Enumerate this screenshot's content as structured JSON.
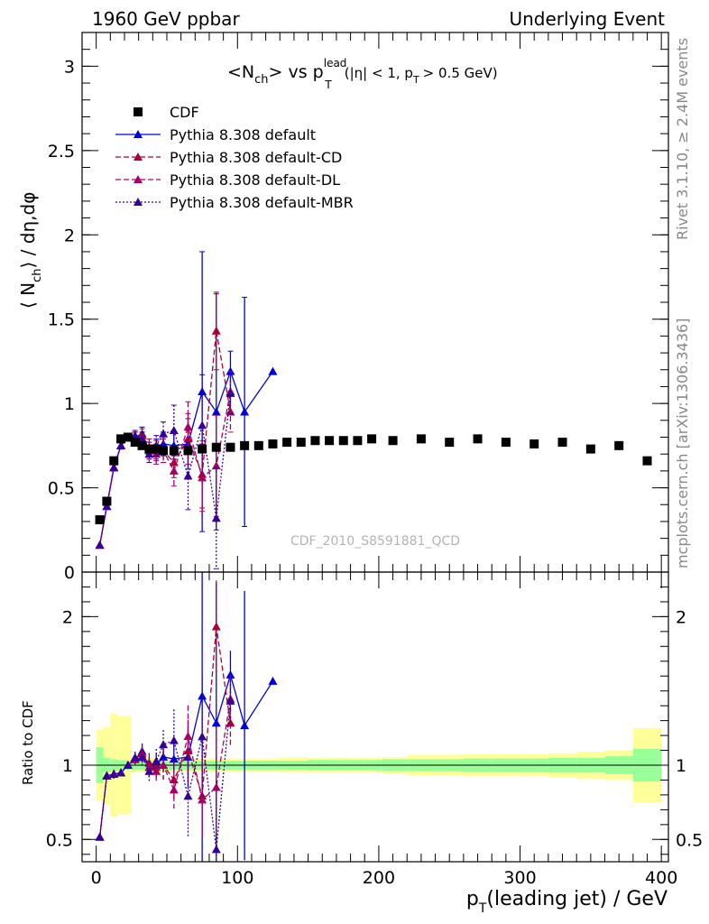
{
  "header": {
    "left": "1960 GeV ppbar",
    "right": "Underlying Event"
  },
  "side_labels": {
    "rivet": "Rivet 3.1.10, ≥ 2.4M events",
    "mcplots": "mcplots.cern.ch [arXiv:1306.3436]"
  },
  "watermark": "CDF_2010_S8591881_QCD",
  "chart_data": {
    "type": "scatter",
    "title_parts": {
      "main": "<N",
      "ch_sub": "ch",
      "vs": "> vs p",
      "lead_sup": "lead",
      "t_sub": "T",
      "cut_open": "(|η| < 1, p",
      "cut_t": "T",
      "cut_close": "> 0.5 GeV)"
    },
    "ylabel_parts": {
      "open": "⟨ N",
      "sub": "ch",
      "close": "⟩ / dη,dφ"
    },
    "xlabel_parts": {
      "p": "p",
      "sub": "T",
      "rest": "(leading jet) / GeV"
    },
    "ratio_ylabel": "Ratio to CDF",
    "xlim": [
      -10,
      405
    ],
    "ylim": [
      0,
      3.2
    ],
    "ratio_ylim": [
      0.35,
      2.3
    ],
    "x_ticks": [
      "0",
      "100",
      "200",
      "300",
      "400"
    ],
    "y_ticks": [
      "0",
      "0.5",
      "1",
      "1.5",
      "2",
      "2.5",
      "3"
    ],
    "ratio_y_ticks": [
      "0.5",
      "1",
      "2"
    ],
    "legend": [
      {
        "label": "CDF",
        "color": "#000000",
        "style": "marker"
      },
      {
        "label": "Pythia 8.308 default",
        "color": "#0000dd",
        "style": "solid"
      },
      {
        "label": "Pythia 8.308 default-CD",
        "color": "#aa0033",
        "style": "dashed"
      },
      {
        "label": "Pythia 8.308 default-DL",
        "color": "#aa0066",
        "style": "dashed"
      },
      {
        "label": "Pythia 8.308 default-MBR",
        "color": "#330099",
        "style": "dotted"
      }
    ],
    "data": {
      "x": [
        2.5,
        7.5,
        12.5,
        17.5,
        22.5,
        27.5,
        32.5,
        37.5,
        42.5,
        47.5,
        55,
        65,
        75,
        85,
        95,
        105,
        115,
        125,
        135,
        145,
        155,
        165,
        175,
        185,
        195,
        210,
        230,
        250,
        270,
        290,
        310,
        330,
        350,
        370,
        390
      ],
      "y": [
        0.31,
        0.42,
        0.66,
        0.79,
        0.8,
        0.77,
        0.75,
        0.73,
        0.73,
        0.72,
        0.72,
        0.72,
        0.73,
        0.74,
        0.74,
        0.75,
        0.75,
        0.76,
        0.77,
        0.77,
        0.78,
        0.78,
        0.78,
        0.78,
        0.79,
        0.78,
        0.79,
        0.77,
        0.79,
        0.77,
        0.76,
        0.77,
        0.73,
        0.75,
        0.66
      ],
      "stat_band": [
        0.12,
        0.05,
        0.04,
        0.035,
        0.03,
        0.03,
        0.03,
        0.03,
        0.03,
        0.03,
        0.03,
        0.03,
        0.03,
        0.03,
        0.03,
        0.03,
        0.03,
        0.03,
        0.03,
        0.03,
        0.035,
        0.035,
        0.035,
        0.035,
        0.035,
        0.04,
        0.04,
        0.04,
        0.045,
        0.045,
        0.045,
        0.05,
        0.05,
        0.06,
        0.11
      ],
      "total_band": [
        0.24,
        0.26,
        0.35,
        0.33,
        0.33,
        0.05,
        0.05,
        0.05,
        0.05,
        0.05,
        0.045,
        0.045,
        0.045,
        0.045,
        0.045,
        0.045,
        0.045,
        0.045,
        0.05,
        0.05,
        0.05,
        0.05,
        0.05,
        0.05,
        0.05,
        0.055,
        0.07,
        0.07,
        0.075,
        0.075,
        0.075,
        0.08,
        0.09,
        0.1,
        0.25
      ]
    },
    "series": [
      {
        "name": "Pythia 8.308 default",
        "color": "#0000dd",
        "dash": "",
        "x": [
          2.5,
          7.5,
          12.5,
          17.5,
          22.5,
          27.5,
          32.5,
          37.5,
          42.5,
          47.5,
          55,
          65,
          75,
          85,
          95,
          105,
          125
        ],
        "y": [
          0.16,
          0.39,
          0.62,
          0.75,
          0.8,
          0.8,
          0.82,
          0.72,
          0.73,
          0.76,
          0.75,
          0.76,
          1.07,
          0.95,
          1.19,
          0.95,
          1.19
        ],
        "err": [
          0,
          0,
          0.02,
          0.02,
          0.02,
          0.03,
          0.04,
          0.05,
          0.06,
          0.07,
          0.08,
          0.15,
          0.83,
          0.7,
          0.12,
          0.68,
          0
        ]
      },
      {
        "name": "Pythia 8.308 default-CD",
        "color": "#aa0033",
        "dash": "6,3",
        "x": [
          2.5,
          7.5,
          12.5,
          17.5,
          22.5,
          27.5,
          32.5,
          37.5,
          42.5,
          47.5,
          55,
          65,
          75,
          85,
          95
        ],
        "y": [
          0.16,
          0.39,
          0.62,
          0.75,
          0.8,
          0.8,
          0.81,
          0.74,
          0.72,
          0.72,
          0.65,
          0.79,
          0.58,
          1.43,
          0.95
        ],
        "err": [
          0,
          0,
          0.02,
          0.02,
          0.02,
          0.03,
          0.04,
          0.05,
          0.06,
          0.07,
          0.09,
          0.15,
          0.2,
          0.23,
          0.12
        ]
      },
      {
        "name": "Pythia 8.308 default-DL",
        "color": "#aa0066",
        "dash": "6,3",
        "x": [
          2.5,
          7.5,
          12.5,
          17.5,
          22.5,
          27.5,
          32.5,
          37.5,
          42.5,
          47.5,
          55,
          65,
          75,
          85,
          95
        ],
        "y": [
          0.16,
          0.39,
          0.62,
          0.75,
          0.8,
          0.8,
          0.79,
          0.72,
          0.7,
          0.72,
          0.6,
          0.86,
          0.56,
          0.63,
          1.07
        ],
        "err": [
          0,
          0,
          0.02,
          0.02,
          0.02,
          0.03,
          0.04,
          0.05,
          0.06,
          0.07,
          0.09,
          0.15,
          0.2,
          0.3,
          0.12
        ]
      },
      {
        "name": "Pythia 8.308 default-MBR",
        "color": "#330099",
        "dash": "2,2",
        "x": [
          2.5,
          7.5,
          12.5,
          17.5,
          22.5,
          27.5,
          32.5,
          37.5,
          42.5,
          47.5,
          55,
          65,
          75,
          85,
          95
        ],
        "y": [
          0.16,
          0.39,
          0.62,
          0.75,
          0.8,
          0.81,
          0.79,
          0.7,
          0.75,
          0.82,
          0.84,
          0.57,
          0.87,
          0.32,
          1.06
        ],
        "err": [
          0,
          0,
          0.02,
          0.02,
          0.02,
          0.03,
          0.04,
          0.05,
          0.06,
          0.07,
          0.15,
          0.2,
          0.3,
          0.3,
          0.12
        ]
      }
    ]
  }
}
